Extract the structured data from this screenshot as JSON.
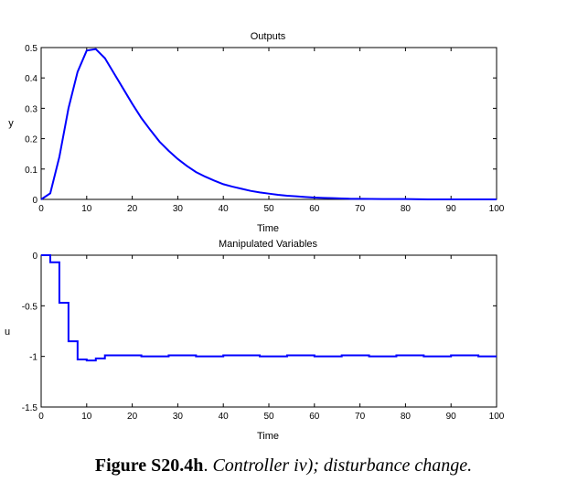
{
  "caption": {
    "label": "Figure S20.4h",
    "separator": ". ",
    "text": "Controller iv); disturbance change."
  },
  "chart_data": [
    {
      "type": "line",
      "title": "Outputs",
      "xlabel": "Time",
      "ylabel": "y",
      "xlim": [
        0,
        100
      ],
      "ylim": [
        0,
        0.5
      ],
      "xticks": [
        0,
        10,
        20,
        30,
        40,
        50,
        60,
        70,
        80,
        90,
        100
      ],
      "yticks": [
        0,
        0.1,
        0.2,
        0.3,
        0.4,
        0.5
      ],
      "xtick_labels": [
        "0",
        "10",
        "20",
        "30",
        "40",
        "50",
        "60",
        "70",
        "80",
        "90",
        "100"
      ],
      "ytick_labels": [
        "0",
        "0.1",
        "0.2",
        "0.3",
        "0.4",
        "0.5"
      ],
      "grid": false,
      "line_color": "#0000ff",
      "series": [
        {
          "x": [
            0,
            2,
            4,
            6,
            8,
            10,
            12,
            14,
            16,
            18,
            20,
            22,
            24,
            26,
            28,
            30,
            32,
            34,
            36,
            38,
            40,
            42,
            44,
            46,
            48,
            50,
            52,
            54,
            56,
            58,
            60,
            62,
            64,
            66,
            68,
            70,
            75,
            80,
            85,
            90,
            95,
            100
          ],
          "y": [
            0,
            0.02,
            0.14,
            0.3,
            0.42,
            0.49,
            0.495,
            0.465,
            0.415,
            0.365,
            0.315,
            0.268,
            0.228,
            0.19,
            0.16,
            0.133,
            0.11,
            0.09,
            0.075,
            0.062,
            0.05,
            0.042,
            0.035,
            0.028,
            0.023,
            0.019,
            0.015,
            0.012,
            0.01,
            0.008,
            0.006,
            0.005,
            0.004,
            0.003,
            0.002,
            0.002,
            0.001,
            0.001,
            0,
            0,
            0,
            0
          ]
        }
      ]
    },
    {
      "type": "line",
      "step": true,
      "title": "Manipulated Variables",
      "xlabel": "Time",
      "ylabel": "u",
      "xlim": [
        0,
        100
      ],
      "ylim": [
        -1.5,
        0
      ],
      "xticks": [
        0,
        10,
        20,
        30,
        40,
        50,
        60,
        70,
        80,
        90,
        100
      ],
      "yticks": [
        -1.5,
        -1,
        -0.5,
        0
      ],
      "xtick_labels": [
        "0",
        "10",
        "20",
        "30",
        "40",
        "50",
        "60",
        "70",
        "80",
        "90",
        "100"
      ],
      "ytick_labels": [
        "-1.5",
        "-1",
        "-0.5",
        "0"
      ],
      "grid": false,
      "line_color": "#0000ff",
      "series": [
        {
          "x": [
            0,
            2,
            4,
            6,
            8,
            10,
            12,
            14,
            18,
            22,
            28,
            34,
            40,
            48,
            54,
            60,
            66,
            72,
            78,
            84,
            90,
            96,
            100
          ],
          "y": [
            0,
            -0.07,
            -0.47,
            -0.85,
            -1.03,
            -1.04,
            -1.02,
            -0.99,
            -0.99,
            -1.0,
            -0.99,
            -1.0,
            -0.99,
            -1.0,
            -0.99,
            -1.0,
            -0.99,
            -1.0,
            -0.99,
            -1.0,
            -0.99,
            -1.0,
            -1.0
          ]
        }
      ]
    }
  ]
}
